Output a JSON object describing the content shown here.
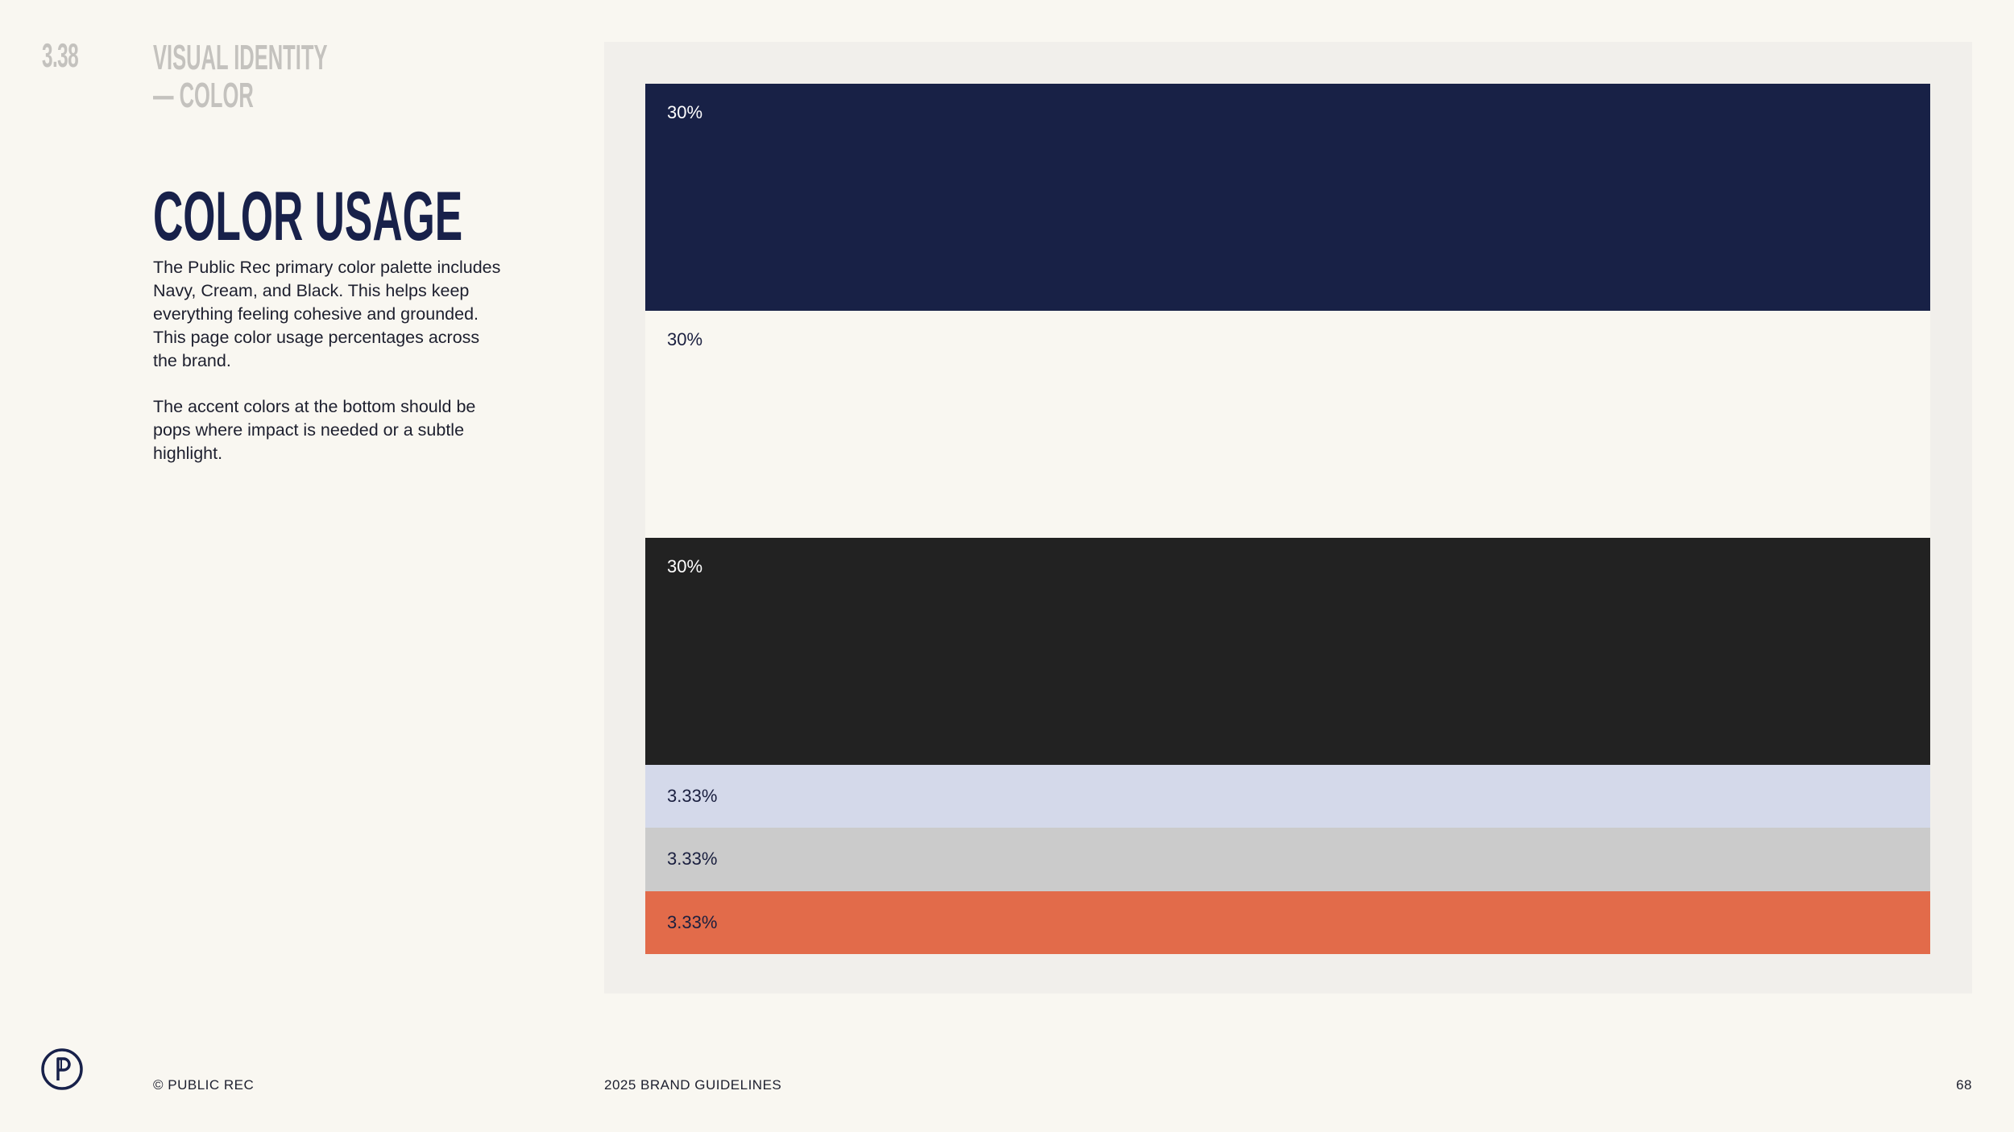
{
  "header": {
    "section_number": "3.38",
    "section_title_line1": "VISUAL IDENTITY",
    "section_title_line2": "— COLOR"
  },
  "content": {
    "title": "COLOR USAGE",
    "paragraph1": "The Public Rec primary color palette includes Navy, Cream, and Black. This helps keep everything feeling cohesive and grounded. This page color usage percentages across the brand.",
    "paragraph2": "The accent colors at the bottom should be pops where impact is needed or a subtle highlight."
  },
  "swatches": [
    {
      "label": "30%",
      "color": "#182146",
      "text_color": "#ffffff",
      "share": 0.3
    },
    {
      "label": "30%",
      "color": "#f9f7f1",
      "text_color": "#1a1f3f",
      "share": 0.3
    },
    {
      "label": "30%",
      "color": "#222222",
      "text_color": "#ffffff",
      "share": 0.3
    },
    {
      "label": "3.33%",
      "color": "#d4d9ea",
      "text_color": "#1a1f3f",
      "share": 0.0333
    },
    {
      "label": "3.33%",
      "color": "#cbcbcb",
      "text_color": "#1a1f3f",
      "share": 0.0333
    },
    {
      "label": "3.33%",
      "color": "#e26b4a",
      "text_color": "#1a1f3f",
      "share": 0.0333
    }
  ],
  "footer": {
    "copyright": "© PUBLIC REC",
    "document": "2025 BRAND GUIDELINES",
    "page_number": "68"
  },
  "logo": {
    "icon": "public-rec-p-logo-icon",
    "color": "#18214a"
  }
}
